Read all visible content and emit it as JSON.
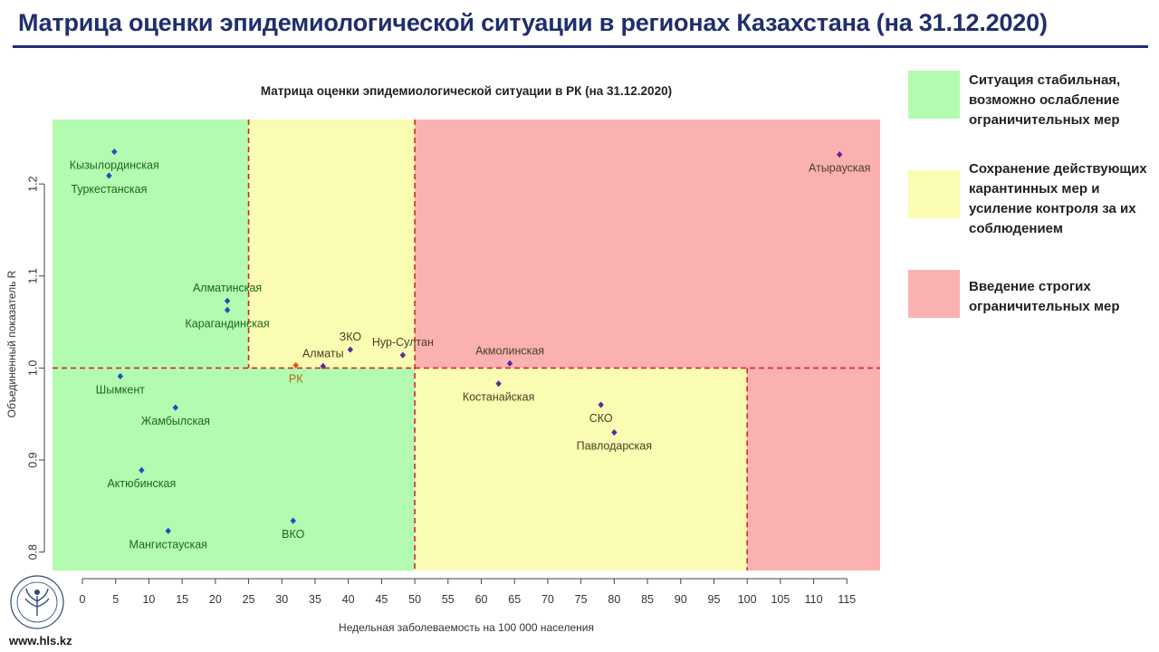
{
  "slide": {
    "title": "Матрица оценки эпидемиологической ситуации в регионах Казахстана (на 31.12.2020)",
    "footer_url": "www.hls.kz"
  },
  "colors": {
    "title": "#1f2e6e",
    "green_zone": "#b3fbb0",
    "yellow_zone": "#fafcb2",
    "red_zone": "#fbb1b1",
    "threshold_line": "#d62728",
    "point_blue": "#1f4fbf",
    "point_purple": "#5b2a9a",
    "point_rk": "#e0581a"
  },
  "legend": [
    {
      "color": "#b3fbb0",
      "text": "Ситуация стабильная, возможно ослабление ограничительных мер"
    },
    {
      "color": "#fafcb2",
      "text": "Сохранение действующих карантинных мер и усиление контроля за их соблюдением"
    },
    {
      "color": "#fbb1b1",
      "text": "Введение строгих ограничительных мер"
    }
  ],
  "chart_data": {
    "type": "scatter",
    "title": "Матрица оценки эпидемиологической ситуации в РК (на 31.12.2020)",
    "xlabel": "Недельная заболеваемость на 100 000 населения",
    "ylabel": "Объединенный показатель R",
    "xlim": [
      -4.5,
      120
    ],
    "ylim": [
      0.78,
      1.27
    ],
    "x_ticks": [
      0,
      5,
      10,
      15,
      20,
      25,
      30,
      35,
      40,
      45,
      50,
      55,
      60,
      65,
      70,
      75,
      80,
      85,
      90,
      95,
      100,
      105,
      110,
      115
    ],
    "y_ticks": [
      0.8,
      0.9,
      1.0,
      1.1,
      1.2
    ],
    "y_tick_labels": [
      "0.8",
      "0.9",
      "1.0",
      "1.1",
      "1.2"
    ],
    "thresholds": {
      "x": [
        25,
        50,
        100
      ],
      "y": 1.0
    },
    "zones": [
      {
        "x": [
          -4.5,
          25
        ],
        "y": [
          1.0,
          1.27
        ],
        "zone": "green"
      },
      {
        "x": [
          25,
          50
        ],
        "y": [
          1.0,
          1.27
        ],
        "zone": "yellow"
      },
      {
        "x": [
          50,
          120
        ],
        "y": [
          1.0,
          1.27
        ],
        "zone": "red"
      },
      {
        "x": [
          -4.5,
          50
        ],
        "y": [
          0.78,
          1.0
        ],
        "zone": "green"
      },
      {
        "x": [
          50,
          100
        ],
        "y": [
          0.78,
          1.0
        ],
        "zone": "yellow"
      },
      {
        "x": [
          100,
          120
        ],
        "y": [
          0.78,
          1.0
        ],
        "zone": "red"
      }
    ],
    "points": [
      {
        "name": "Кызылординская",
        "x": 4.8,
        "y": 1.235,
        "color": "blue",
        "label_pos": "below"
      },
      {
        "name": "Туркестанская",
        "x": 4.0,
        "y": 1.209,
        "color": "blue",
        "label_pos": "below"
      },
      {
        "name": "Алматинская",
        "x": 21.8,
        "y": 1.073,
        "color": "blue",
        "label_pos": "above"
      },
      {
        "name": "Карагандинская",
        "x": 21.8,
        "y": 1.063,
        "color": "blue",
        "label_pos": "below"
      },
      {
        "name": "ЗКО",
        "x": 40.3,
        "y": 1.02,
        "color": "purple",
        "label_pos": "above"
      },
      {
        "name": "Нур-Султан",
        "x": 48.2,
        "y": 1.014,
        "color": "purple",
        "label_pos": "above"
      },
      {
        "name": "Алматы",
        "x": 36.2,
        "y": 1.002,
        "color": "purple",
        "label_pos": "above"
      },
      {
        "name": "РК",
        "x": 32.1,
        "y": 1.003,
        "color": "rk",
        "label_pos": "below"
      },
      {
        "name": "Шымкент",
        "x": 5.7,
        "y": 0.991,
        "color": "blue",
        "label_pos": "below"
      },
      {
        "name": "Жамбылская",
        "x": 14.0,
        "y": 0.957,
        "color": "blue",
        "label_pos": "below"
      },
      {
        "name": "Актюбинская",
        "x": 8.9,
        "y": 0.889,
        "color": "blue",
        "label_pos": "below"
      },
      {
        "name": "Мангистауская",
        "x": 12.9,
        "y": 0.823,
        "color": "blue",
        "label_pos": "below"
      },
      {
        "name": "ВКО",
        "x": 31.7,
        "y": 0.834,
        "color": "blue",
        "label_pos": "below"
      },
      {
        "name": "Акмолинская",
        "x": 64.3,
        "y": 1.005,
        "color": "purple",
        "label_pos": "above"
      },
      {
        "name": "Костанайская",
        "x": 62.6,
        "y": 0.983,
        "color": "purple",
        "label_pos": "below"
      },
      {
        "name": "СКО",
        "x": 78.0,
        "y": 0.96,
        "color": "purple",
        "label_pos": "below"
      },
      {
        "name": "Павлодарская",
        "x": 80.0,
        "y": 0.93,
        "color": "purple",
        "label_pos": "below"
      },
      {
        "name": "Атырауская",
        "x": 113.9,
        "y": 1.232,
        "color": "purple",
        "label_pos": "below"
      }
    ]
  }
}
